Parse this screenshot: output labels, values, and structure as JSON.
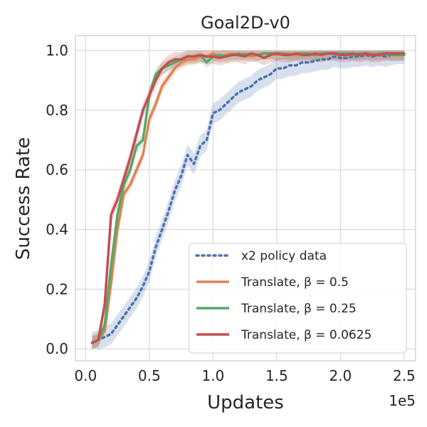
{
  "chart_data": {
    "type": "line",
    "title": "Goal2D-v0",
    "xlabel": "Updates",
    "ylabel": "Success Rate",
    "x_scale_label": "1e5",
    "xlim": [
      -0.08,
      2.59
    ],
    "ylim": [
      -0.04,
      1.05
    ],
    "xticks": [
      0.0,
      0.5,
      1.0,
      1.5,
      2.0,
      2.5
    ],
    "xtick_labels": [
      "0.0",
      "0.5",
      "1.0",
      "1.5",
      "2.0",
      "2.5"
    ],
    "yticks": [
      0.0,
      0.2,
      0.4,
      0.6,
      0.8,
      1.0
    ],
    "ytick_labels": [
      "0.0",
      "0.2",
      "0.4",
      "0.6",
      "0.8",
      "1.0"
    ],
    "grid": true,
    "legend_position": "bottom-right",
    "series": [
      {
        "name": "x2 policy data",
        "color": "#4C72B0",
        "dash": "dotted",
        "x": [
          0.05,
          0.1,
          0.15,
          0.2,
          0.25,
          0.3,
          0.35,
          0.4,
          0.45,
          0.5,
          0.55,
          0.6,
          0.65,
          0.7,
          0.75,
          0.8,
          0.85,
          0.9,
          0.95,
          1.0,
          1.05,
          1.1,
          1.15,
          1.2,
          1.25,
          1.3,
          1.35,
          1.4,
          1.45,
          1.5,
          1.55,
          1.6,
          1.65,
          1.7,
          1.75,
          1.8,
          1.85,
          1.9,
          1.95,
          2.0,
          2.05,
          2.1,
          2.15,
          2.2,
          2.25,
          2.3,
          2.35,
          2.4,
          2.45,
          2.5
        ],
        "values": [
          0.02,
          0.03,
          0.04,
          0.05,
          0.08,
          0.11,
          0.14,
          0.17,
          0.21,
          0.26,
          0.34,
          0.4,
          0.46,
          0.53,
          0.58,
          0.65,
          0.62,
          0.68,
          0.7,
          0.79,
          0.8,
          0.82,
          0.84,
          0.86,
          0.87,
          0.88,
          0.9,
          0.91,
          0.92,
          0.94,
          0.94,
          0.95,
          0.95,
          0.96,
          0.96,
          0.965,
          0.97,
          0.97,
          0.98,
          0.975,
          0.975,
          0.98,
          0.98,
          0.985,
          0.98,
          0.985,
          0.98,
          0.985,
          0.99,
          0.99
        ],
        "band": 0.035
      },
      {
        "name": "Translate, β = 0.5",
        "color": "#DD8452",
        "dash": "solid",
        "x": [
          0.05,
          0.1,
          0.15,
          0.2,
          0.25,
          0.3,
          0.35,
          0.4,
          0.45,
          0.5,
          0.55,
          0.6,
          0.65,
          0.7,
          0.75,
          0.8,
          0.85,
          0.9,
          0.95,
          1.0,
          1.05,
          1.1,
          1.15,
          1.2,
          1.25,
          1.3,
          1.35,
          1.4,
          1.45,
          1.5,
          1.55,
          1.6,
          1.65,
          1.7,
          1.75,
          1.8,
          1.85,
          1.9,
          1.95,
          2.0,
          2.05,
          2.1,
          2.15,
          2.2,
          2.25,
          2.3,
          2.35,
          2.4,
          2.45,
          2.5
        ],
        "values": [
          0.02,
          0.03,
          0.06,
          0.22,
          0.4,
          0.52,
          0.55,
          0.6,
          0.65,
          0.77,
          0.82,
          0.88,
          0.91,
          0.94,
          0.96,
          0.97,
          0.97,
          0.98,
          0.98,
          0.99,
          0.98,
          0.985,
          0.99,
          0.985,
          0.99,
          0.98,
          0.985,
          0.99,
          0.99,
          0.985,
          0.99,
          0.99,
          0.985,
          0.99,
          0.99,
          0.985,
          0.99,
          0.99,
          0.99,
          0.985,
          0.99,
          0.99,
          0.985,
          0.99,
          0.99,
          0.985,
          0.99,
          0.99,
          0.99,
          0.99
        ],
        "band": 0.02
      },
      {
        "name": "Translate, β = 0.25",
        "color": "#55A868",
        "dash": "solid",
        "x": [
          0.05,
          0.1,
          0.15,
          0.2,
          0.25,
          0.3,
          0.35,
          0.4,
          0.45,
          0.5,
          0.55,
          0.6,
          0.65,
          0.7,
          0.75,
          0.8,
          0.85,
          0.9,
          0.95,
          1.0,
          1.05,
          1.1,
          1.15,
          1.2,
          1.25,
          1.3,
          1.35,
          1.4,
          1.45,
          1.5,
          1.55,
          1.6,
          1.65,
          1.7,
          1.75,
          1.8,
          1.85,
          1.9,
          1.95,
          2.0,
          2.05,
          2.1,
          2.15,
          2.2,
          2.25,
          2.3,
          2.35,
          2.4,
          2.45,
          2.5
        ],
        "values": [
          0.02,
          0.03,
          0.08,
          0.28,
          0.45,
          0.55,
          0.6,
          0.68,
          0.7,
          0.85,
          0.92,
          0.94,
          0.95,
          0.96,
          0.97,
          0.98,
          0.98,
          0.985,
          0.96,
          0.98,
          0.985,
          0.98,
          0.985,
          0.99,
          0.985,
          0.99,
          0.985,
          0.99,
          0.99,
          0.99,
          0.99,
          0.985,
          0.99,
          0.99,
          0.99,
          0.985,
          0.99,
          0.99,
          0.99,
          0.99,
          0.99,
          0.985,
          0.99,
          0.99,
          0.985,
          0.99,
          0.99,
          0.985,
          0.985,
          0.985
        ],
        "band": 0.02
      },
      {
        "name": "Translate, β = 0.0625",
        "color": "#C44E52",
        "dash": "solid",
        "x": [
          0.05,
          0.1,
          0.15,
          0.2,
          0.25,
          0.3,
          0.35,
          0.4,
          0.45,
          0.5,
          0.55,
          0.6,
          0.65,
          0.7,
          0.75,
          0.8,
          0.85,
          0.9,
          0.95,
          1.0,
          1.05,
          1.1,
          1.15,
          1.2,
          1.25,
          1.3,
          1.35,
          1.4,
          1.45,
          1.5,
          1.55,
          1.6,
          1.65,
          1.7,
          1.75,
          1.8,
          1.85,
          1.9,
          1.95,
          2.0,
          2.05,
          2.1,
          2.15,
          2.2,
          2.25,
          2.3,
          2.35,
          2.4,
          2.45,
          2.5
        ],
        "values": [
          0.02,
          0.03,
          0.15,
          0.45,
          0.5,
          0.57,
          0.64,
          0.72,
          0.8,
          0.85,
          0.9,
          0.94,
          0.96,
          0.97,
          0.97,
          0.98,
          0.98,
          0.985,
          0.98,
          0.98,
          0.975,
          0.98,
          0.985,
          0.985,
          0.98,
          0.99,
          0.985,
          0.975,
          0.985,
          0.99,
          0.985,
          0.985,
          0.99,
          0.985,
          0.985,
          0.99,
          0.985,
          0.99,
          0.99,
          0.985,
          0.985,
          0.99,
          0.985,
          0.99,
          0.985,
          0.985,
          0.99,
          0.99,
          0.99,
          0.99
        ],
        "band": 0.025
      }
    ]
  }
}
